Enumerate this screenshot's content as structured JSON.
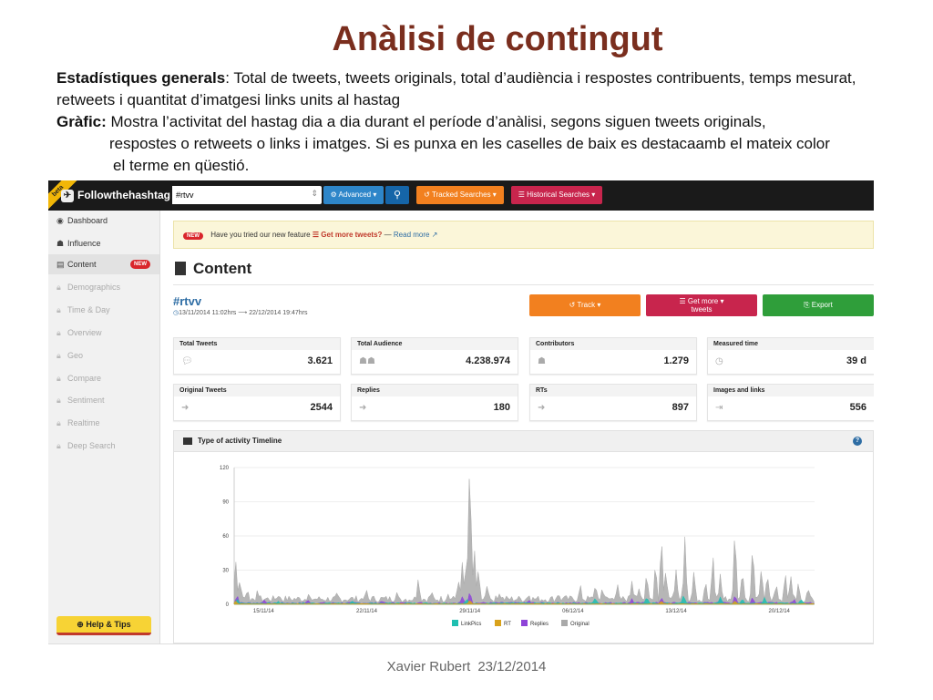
{
  "slide": {
    "title": "Anàlisi de contingut",
    "p1_bold": "Estadístiques generals",
    "p1_text": ": Total de tweets, tweets originals, total d’audiència i respostes contribuents, temps mesurat, retweets i quantitat d’imatgesi links units al hastag",
    "p2_bold": "Gràfic:",
    "p2_line1": " Mostra l’activitat del hastag dia a dia durant el període d’anàlisi, segons siguen tweets originals,",
    "p2_line2": "respostes o retweets o links i imatges. Si es punxa en les caselles de baix es destacaamb el mateix color",
    "p2_line3": "el terme en qüestió.",
    "footer_author": "Xavier Rubert",
    "footer_date": "23/12/2014"
  },
  "app": {
    "beta": "beta",
    "logo": "Followthehashtag",
    "search": {
      "value": "#rtvv",
      "placeholder": ""
    },
    "advanced_label": "Advanced",
    "tracked_label": "Tracked Searches",
    "historical_label": "Historical Searches",
    "sidebar": [
      {
        "label": "Dashboard",
        "icon": "dashboard-icon"
      },
      {
        "label": "Influence",
        "icon": "users-icon"
      },
      {
        "label": "Content",
        "icon": "document-icon",
        "badge": "NEW"
      },
      {
        "label": "Demographics",
        "icon": "lock-icon"
      },
      {
        "label": "Time & Day",
        "icon": "lock-icon"
      },
      {
        "label": "Overview",
        "icon": "lock-icon"
      },
      {
        "label": "Geo",
        "icon": "lock-icon"
      },
      {
        "label": "Compare",
        "icon": "lock-icon"
      },
      {
        "label": "Sentiment",
        "icon": "lock-icon"
      },
      {
        "label": "Realtime",
        "icon": "lock-icon"
      },
      {
        "label": "Deep Search",
        "icon": "lock-icon"
      }
    ],
    "help_label": "Help & Tips",
    "notice": {
      "badge": "NEW",
      "text": "Have you tried our new feature",
      "feature": "Get more tweets?",
      "dash": "—",
      "readmore": "Read more"
    },
    "content_title": "Content",
    "hashtag": "#rtvv",
    "date_from": "13/11/2014 11:02hrs",
    "date_to": "22/12/2014 19:47hrs",
    "track_label": "Track",
    "getmore_label_1": "Get more",
    "getmore_label_2": "tweets",
    "export_label": "Export",
    "stats": [
      {
        "label": "Total Tweets",
        "value": "3.621",
        "icon": "comment-icon"
      },
      {
        "label": "Total Audience",
        "value": "4.238.974",
        "icon": "users-icon"
      },
      {
        "label": "Contributors",
        "value": "1.279",
        "icon": "user-icon"
      },
      {
        "label": "Measured time",
        "value": "39 d",
        "icon": "clock-icon"
      },
      {
        "label": "Original Tweets",
        "value": "2544",
        "icon": "signin-icon"
      },
      {
        "label": "Replies",
        "value": "180",
        "icon": "signin-icon"
      },
      {
        "label": "RTs",
        "value": "897",
        "icon": "signin-icon"
      },
      {
        "label": "Images and links",
        "value": "556",
        "icon": "signout-icon"
      }
    ],
    "timeline_title": "Type of activity Timeline",
    "colors": {
      "orange": "#f2801f",
      "crimson": "#c8254d",
      "green": "#2f9e3a",
      "blue": "#2e86c9"
    }
  },
  "chart_data": {
    "type": "area",
    "title": "",
    "xlabel": "",
    "ylabel": "",
    "ylim": [
      0,
      120
    ],
    "y_ticks": [
      0,
      30,
      60,
      90,
      120
    ],
    "x_tick_labels": [
      "15/11/14",
      "22/11/14",
      "29/11/14",
      "06/12/14",
      "13/12/14",
      "20/12/14"
    ],
    "x_tick_days": [
      2,
      9,
      16,
      23,
      30,
      37
    ],
    "x_range_days": [
      0,
      39.4
    ],
    "legend": [
      "LinkPics",
      "RT",
      "Replies",
      "Original"
    ],
    "series": [
      {
        "name": "Original",
        "color": "#a9a9a9",
        "peaks": [
          [
            0.1,
            40
          ],
          [
            0.4,
            20
          ],
          [
            0.9,
            10
          ],
          [
            1.6,
            8
          ],
          [
            3,
            6
          ],
          [
            5,
            6
          ],
          [
            7,
            6
          ],
          [
            9,
            7
          ],
          [
            11,
            7
          ],
          [
            12.5,
            20
          ],
          [
            13.4,
            6
          ],
          [
            14.5,
            6
          ],
          [
            15.2,
            20
          ],
          [
            15.5,
            35
          ],
          [
            15.8,
            45
          ],
          [
            16.0,
            135
          ],
          [
            16.3,
            50
          ],
          [
            16.6,
            30
          ],
          [
            17.2,
            15
          ],
          [
            18,
            8
          ],
          [
            20,
            7
          ],
          [
            22,
            8
          ],
          [
            23.5,
            12
          ],
          [
            24.5,
            15
          ],
          [
            25,
            12
          ],
          [
            26,
            15
          ],
          [
            27,
            20
          ],
          [
            27.5,
            15
          ],
          [
            28,
            25
          ],
          [
            28.6,
            35
          ],
          [
            29.0,
            60
          ],
          [
            29.3,
            25
          ],
          [
            30.0,
            30
          ],
          [
            30.6,
            55
          ],
          [
            31.2,
            25
          ],
          [
            32,
            20
          ],
          [
            32.5,
            40
          ],
          [
            33,
            25
          ],
          [
            34,
            70
          ],
          [
            34.5,
            30
          ],
          [
            35.2,
            55
          ],
          [
            35.8,
            30
          ],
          [
            36.2,
            25
          ],
          [
            36.8,
            15
          ],
          [
            37.4,
            25
          ],
          [
            37.8,
            20
          ],
          [
            38.3,
            15
          ],
          [
            39.0,
            12
          ]
        ]
      },
      {
        "name": "Replies",
        "color": "#8e44d8",
        "peaks": [
          [
            0.2,
            8
          ],
          [
            2,
            3
          ],
          [
            5,
            3
          ],
          [
            10,
            3
          ],
          [
            15.5,
            6
          ],
          [
            16.0,
            12
          ],
          [
            20,
            3
          ],
          [
            27,
            4
          ],
          [
            29,
            5
          ],
          [
            33,
            5
          ],
          [
            34,
            8
          ],
          [
            35.2,
            6
          ],
          [
            38,
            4
          ]
        ]
      },
      {
        "name": "LinkPics",
        "color": "#1fbfb0",
        "peaks": [
          [
            0.2,
            5
          ],
          [
            3,
            2
          ],
          [
            8,
            2
          ],
          [
            15.8,
            4
          ],
          [
            24.5,
            5
          ],
          [
            28,
            6
          ],
          [
            30.5,
            8
          ],
          [
            33,
            6
          ],
          [
            34.5,
            5
          ],
          [
            36,
            6
          ],
          [
            38.5,
            4
          ]
        ]
      },
      {
        "name": "RT",
        "color": "#d9a21b",
        "peaks": [
          [
            0.1,
            3
          ],
          [
            16,
            4
          ],
          [
            29,
            3
          ],
          [
            34,
            3
          ]
        ]
      }
    ]
  }
}
